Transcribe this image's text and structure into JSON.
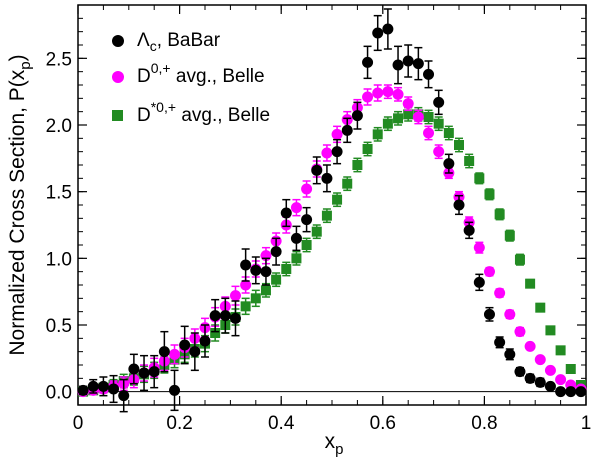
{
  "chart_data": {
    "type": "scatter",
    "xlabel": "x",
    "xlabel_sub": "p",
    "ylabel": "Normalized Cross Section, P(x",
    "ylabel_sub": "p",
    "ylabel_close": ")",
    "xlim": [
      0,
      1
    ],
    "ylim": [
      -0.1,
      2.9
    ],
    "xticks": [
      0,
      0.2,
      0.4,
      0.6,
      0.8,
      1
    ],
    "xtick_labels": [
      "0",
      "0.2",
      "0.4",
      "0.6",
      "0.8",
      "1"
    ],
    "yticks": [
      0,
      0.5,
      1,
      1.5,
      2,
      2.5
    ],
    "ytick_labels": [
      "0.0",
      "0.5",
      "1.0",
      "1.5",
      "2.0",
      "2.5"
    ],
    "zero_line": true,
    "legend_position": "top-left",
    "series": [
      {
        "name_main": "Λ",
        "name_sub": "c",
        "name_rest": ", BaBar",
        "marker": "circle",
        "color": "#000000",
        "x": [
          0.01,
          0.03,
          0.05,
          0.07,
          0.09,
          0.11,
          0.13,
          0.15,
          0.17,
          0.19,
          0.21,
          0.23,
          0.25,
          0.27,
          0.29,
          0.31,
          0.33,
          0.35,
          0.37,
          0.39,
          0.41,
          0.43,
          0.45,
          0.47,
          0.49,
          0.51,
          0.53,
          0.55,
          0.57,
          0.59,
          0.61,
          0.63,
          0.65,
          0.67,
          0.69,
          0.71,
          0.73,
          0.75,
          0.77,
          0.79,
          0.81,
          0.83,
          0.85,
          0.87,
          0.89,
          0.91,
          0.93,
          0.95,
          0.97,
          0.99
        ],
        "y": [
          0.01,
          0.04,
          0.04,
          0.02,
          -0.03,
          0.17,
          0.14,
          0.15,
          0.3,
          0.01,
          0.35,
          0.3,
          0.38,
          0.57,
          0.57,
          0.55,
          0.95,
          0.91,
          0.9,
          1.05,
          1.34,
          1.15,
          1.29,
          1.66,
          1.6,
          1.8,
          1.96,
          2.07,
          2.47,
          2.69,
          2.72,
          2.45,
          2.48,
          2.46,
          2.38,
          2.17,
          1.71,
          1.4,
          1.21,
          0.82,
          0.58,
          0.37,
          0.28,
          0.15,
          0.1,
          0.07,
          0.04,
          0.0,
          0.0,
          0.0
        ],
        "err": [
          0.03,
          0.05,
          0.07,
          0.1,
          0.12,
          0.11,
          0.13,
          0.12,
          0.15,
          0.15,
          0.14,
          0.14,
          0.12,
          0.12,
          0.13,
          0.13,
          0.12,
          0.1,
          0.1,
          0.1,
          0.1,
          0.09,
          0.09,
          0.1,
          0.1,
          0.09,
          0.09,
          0.1,
          0.12,
          0.13,
          0.15,
          0.14,
          0.12,
          0.12,
          0.1,
          0.09,
          0.07,
          0.07,
          0.06,
          0.06,
          0.05,
          0.04,
          0.04,
          0.03,
          0.03,
          0.03,
          0.02,
          0.02,
          0.02,
          0.02
        ]
      },
      {
        "name_main": "D",
        "name_sup": "0,+",
        "name_rest": " avg.,  Belle",
        "marker": "circle",
        "color": "#ff00ff",
        "x": [
          0.01,
          0.03,
          0.05,
          0.07,
          0.09,
          0.11,
          0.13,
          0.15,
          0.17,
          0.19,
          0.21,
          0.23,
          0.25,
          0.27,
          0.29,
          0.31,
          0.33,
          0.35,
          0.37,
          0.39,
          0.41,
          0.43,
          0.45,
          0.47,
          0.49,
          0.51,
          0.53,
          0.55,
          0.57,
          0.59,
          0.61,
          0.63,
          0.65,
          0.67,
          0.69,
          0.71,
          0.73,
          0.75,
          0.77,
          0.79,
          0.81,
          0.83,
          0.85,
          0.87,
          0.89,
          0.91,
          0.93,
          0.95,
          0.97,
          0.99
        ],
        "y": [
          0.0,
          0.01,
          0.02,
          0.04,
          0.06,
          0.09,
          0.14,
          0.18,
          0.23,
          0.28,
          0.33,
          0.4,
          0.48,
          0.56,
          0.64,
          0.72,
          0.8,
          0.92,
          1.02,
          1.13,
          1.25,
          1.38,
          1.52,
          1.67,
          1.79,
          1.93,
          2.04,
          2.13,
          2.21,
          2.24,
          2.25,
          2.23,
          2.16,
          2.06,
          1.94,
          1.8,
          1.64,
          1.46,
          1.27,
          1.08,
          0.9,
          0.74,
          0.58,
          0.45,
          0.34,
          0.24,
          0.16,
          0.09,
          0.05,
          0.02
        ],
        "err": [
          0.01,
          0.02,
          0.03,
          0.04,
          0.05,
          0.06,
          0.06,
          0.07,
          0.07,
          0.07,
          0.07,
          0.07,
          0.07,
          0.07,
          0.07,
          0.07,
          0.06,
          0.06,
          0.06,
          0.06,
          0.06,
          0.06,
          0.06,
          0.06,
          0.06,
          0.06,
          0.06,
          0.06,
          0.06,
          0.06,
          0.05,
          0.05,
          0.05,
          0.05,
          0.05,
          0.05,
          0.04,
          0.04,
          0.04,
          0.04,
          0.03,
          0.03,
          0.03,
          0.03,
          0.02,
          0.02,
          0.02,
          0.02,
          0.02,
          0.01
        ]
      },
      {
        "name_main": "D",
        "name_sup": "*0,+",
        "name_rest": " avg., Belle",
        "marker": "square",
        "color": "#228b22",
        "x": [
          0.01,
          0.03,
          0.05,
          0.07,
          0.09,
          0.11,
          0.13,
          0.15,
          0.17,
          0.19,
          0.21,
          0.23,
          0.25,
          0.27,
          0.29,
          0.31,
          0.33,
          0.35,
          0.37,
          0.39,
          0.41,
          0.43,
          0.45,
          0.47,
          0.49,
          0.51,
          0.53,
          0.55,
          0.57,
          0.59,
          0.61,
          0.63,
          0.65,
          0.67,
          0.69,
          0.71,
          0.73,
          0.75,
          0.77,
          0.79,
          0.81,
          0.83,
          0.85,
          0.87,
          0.89,
          0.91,
          0.93,
          0.95,
          0.97,
          0.99
        ],
        "y": [
          0.0,
          0.01,
          0.03,
          0.05,
          0.08,
          0.1,
          0.13,
          0.16,
          0.2,
          0.24,
          0.28,
          0.32,
          0.36,
          0.44,
          0.5,
          0.56,
          0.64,
          0.7,
          0.76,
          0.84,
          0.92,
          1.0,
          1.1,
          1.2,
          1.32,
          1.44,
          1.56,
          1.7,
          1.82,
          1.93,
          2.01,
          2.05,
          2.08,
          2.08,
          2.06,
          2.01,
          1.94,
          1.85,
          1.73,
          1.6,
          1.48,
          1.33,
          1.17,
          0.99,
          0.81,
          0.63,
          0.46,
          0.31,
          0.17,
          0.05
        ],
        "err": [
          0.01,
          0.02,
          0.03,
          0.04,
          0.05,
          0.05,
          0.06,
          0.06,
          0.06,
          0.06,
          0.06,
          0.06,
          0.06,
          0.06,
          0.06,
          0.06,
          0.06,
          0.06,
          0.05,
          0.05,
          0.05,
          0.05,
          0.05,
          0.05,
          0.05,
          0.05,
          0.05,
          0.05,
          0.05,
          0.05,
          0.05,
          0.05,
          0.05,
          0.05,
          0.05,
          0.05,
          0.05,
          0.05,
          0.05,
          0.04,
          0.04,
          0.04,
          0.04,
          0.04,
          0.03,
          0.03,
          0.03,
          0.03,
          0.02,
          0.02
        ]
      }
    ]
  }
}
